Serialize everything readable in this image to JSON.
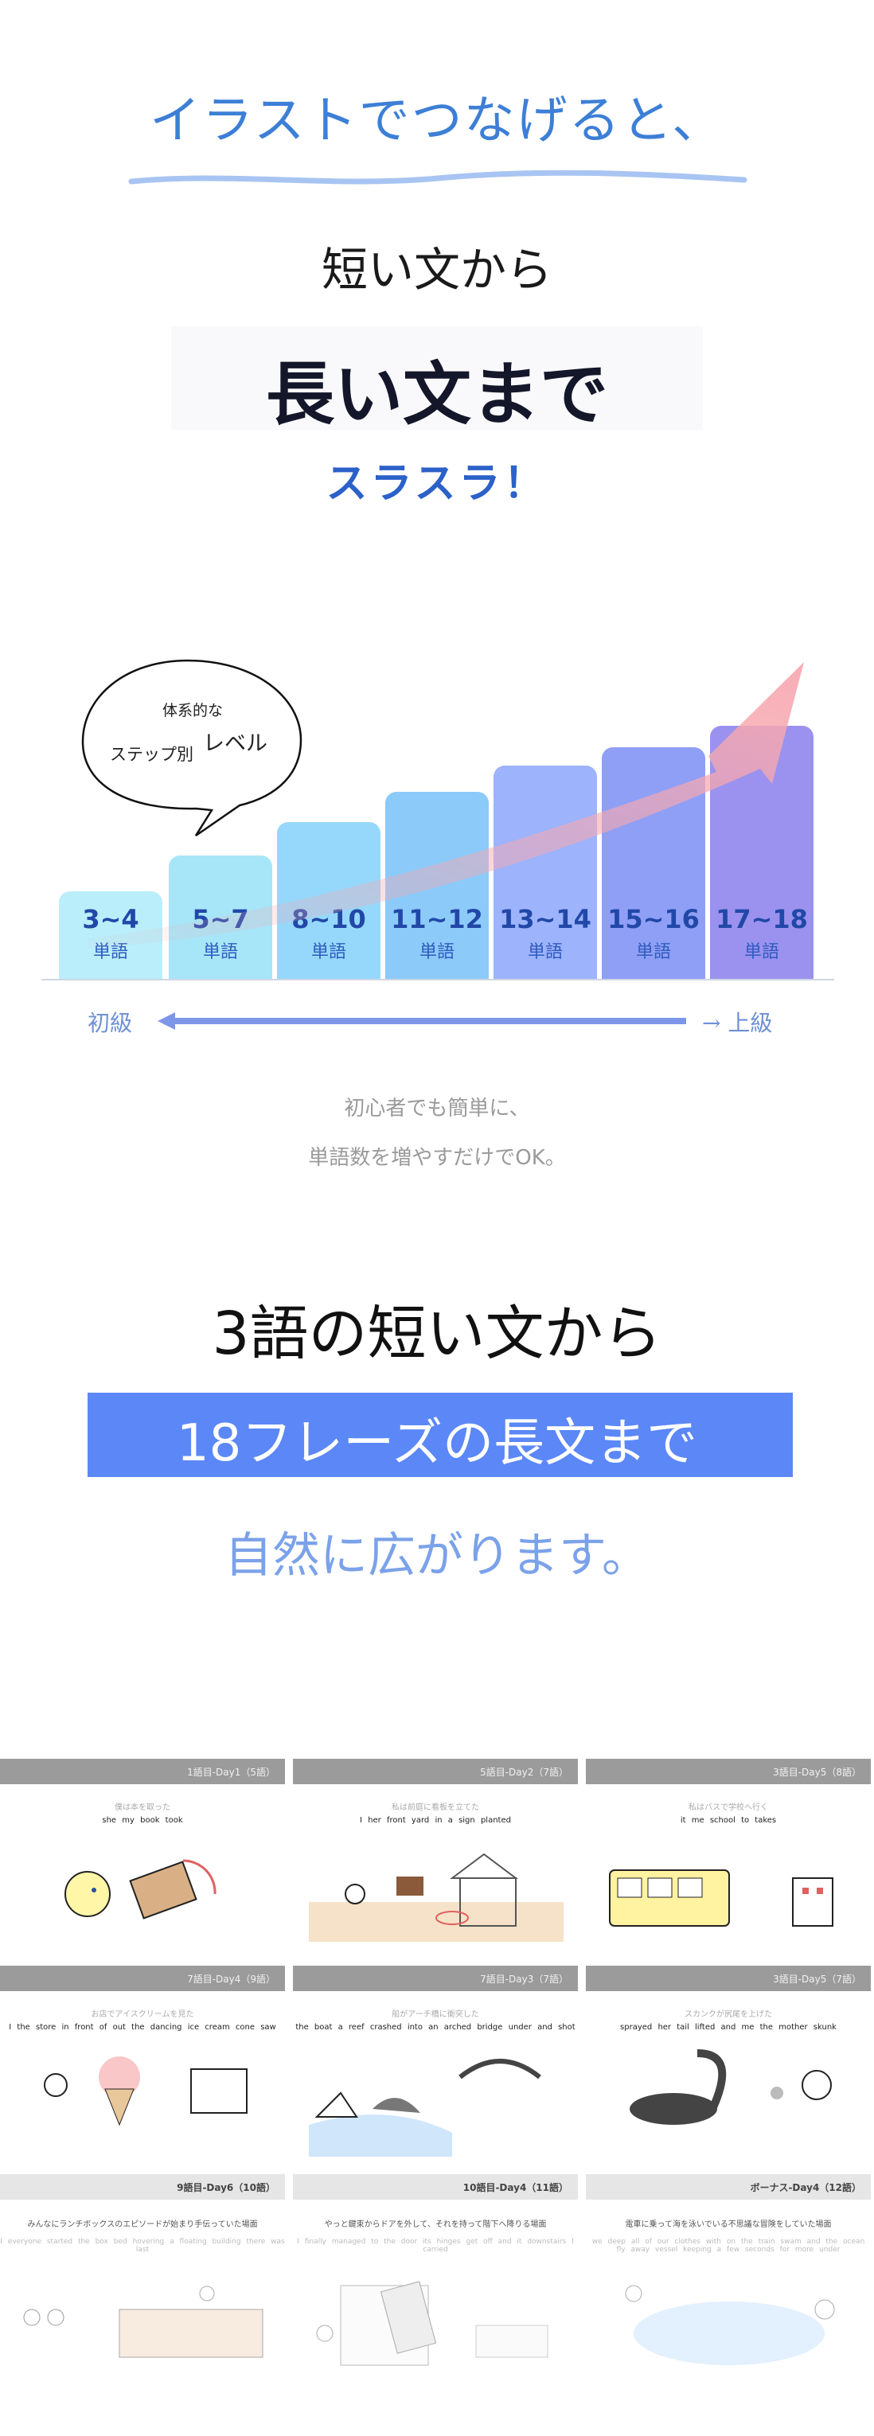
{
  "hero": {
    "line1": "イラストでつなげると、",
    "line2": "短い文から",
    "line3": "長い文まで",
    "line4": "スラスラ！"
  },
  "level_chart": {
    "bubble": {
      "line1": "体系的な",
      "line2": "ステップ別",
      "line3": "レベル"
    },
    "bars": [
      {
        "range": "3~4",
        "unit": "単語",
        "color": "#b9eefa"
      },
      {
        "range": "5~7",
        "unit": "単語",
        "color": "#a7e6f8"
      },
      {
        "range": "8~10",
        "unit": "単語",
        "color": "#96d8fb"
      },
      {
        "range": "11~12",
        "unit": "単語",
        "color": "#8ccaf9"
      },
      {
        "range": "13~14",
        "unit": "単語",
        "color": "#9db3fb"
      },
      {
        "range": "15~16",
        "unit": "単語",
        "color": "#8f9ff5"
      },
      {
        "range": "17~18",
        "unit": "単語",
        "color": "#9a92ee"
      }
    ],
    "beginner": "初級",
    "advanced": "→ 上級",
    "arrow_color": "#f7a8b0"
  },
  "description": {
    "line1": "初心者でも簡単に、",
    "line2": "単語数を増やすだけでOK。"
  },
  "section2": {
    "line1": "3語の短い文から",
    "line2": "18フレーズの長文まで",
    "line3": "自然に広がります。",
    "box_color": "#5b87f7"
  },
  "thumbnails": [
    {
      "day": "1語目-Day1（5語）",
      "subtitle": "僕は本を取った",
      "words": [
        "she",
        "my book",
        "took"
      ]
    },
    {
      "day": "5語目-Day2（7語）",
      "subtitle": "私は前庭に看板を立てた",
      "words": [
        "I",
        "her front yard",
        "in",
        "a sign",
        "planted"
      ]
    },
    {
      "day": "3語目-Day5（8語）",
      "subtitle": "私はバスで学校へ行く",
      "words": [
        "it",
        "me",
        "school",
        "to",
        "takes"
      ]
    },
    {
      "day": "7語目-Day4（9語）",
      "subtitle": "お店でアイスクリームを見た",
      "words": [
        "I",
        "the store",
        "in front of",
        "out",
        "the dancing ice cream cone",
        "saw"
      ]
    },
    {
      "day": "7語目-Day3（7語）",
      "subtitle": "船がアーチ橋に衝突した",
      "words": [
        "the boat",
        "a reef",
        "crashed",
        "into",
        "an arched bridge",
        "under",
        "and shot"
      ]
    },
    {
      "day": "3語目-Day5（7語）",
      "subtitle": "スカンクが尻尾を上げた",
      "words": [
        "sprayed",
        "her tail",
        "lifted",
        "and",
        "me",
        "the mother skunk"
      ]
    },
    {
      "day": "9語目-Day6（10語）",
      "subtitle": "みんなにランチボックスのエピソードが始まり手伝っていた場面",
      "words": [
        "I",
        "everyone",
        "started",
        "the box",
        "bed",
        "hovering",
        "a floating building",
        "there",
        "was",
        "last"
      ]
    },
    {
      "day": "10語目-Day4（11語）",
      "subtitle": "やっと鍵束からドアを外して、それを持って階下へ降りる場面",
      "words": [
        "I",
        "finally",
        "managed",
        "to",
        "the door",
        "its hinges",
        "get",
        "off",
        "and",
        "it",
        "downstairs",
        "I",
        "carried"
      ]
    },
    {
      "day": "ボーナス-Day4（12語）",
      "subtitle": "電車に乗って海を泳いでいる不思議な冒険をしていた場面",
      "words": [
        "we",
        "deep",
        "all of our clothes",
        "with",
        "on",
        "the train",
        "swam",
        "and",
        "the ocean",
        "fly away",
        "vessel",
        "keeping",
        "a few seconds",
        "for",
        "more",
        "under"
      ]
    }
  ]
}
